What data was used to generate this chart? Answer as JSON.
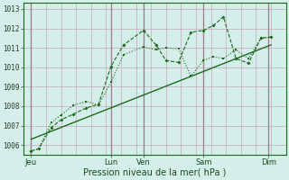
{
  "xlabel": "Pression niveau de la mer( hPa )",
  "bg_color": "#d4eeea",
  "grid_color": "#c8a8b8",
  "line_color": "#1a6b1a",
  "ylim": [
    1005.5,
    1013.3
  ],
  "xlim": [
    0,
    10.5
  ],
  "yticks": [
    1006,
    1007,
    1008,
    1009,
    1010,
    1011,
    1012,
    1013
  ],
  "xtick_labels": [
    "Jeu",
    "Lun",
    "Ven",
    "Sam",
    "Dim"
  ],
  "xtick_positions": [
    0.3,
    3.5,
    4.8,
    7.2,
    9.8
  ],
  "vline_positions": [
    0.3,
    3.5,
    4.8,
    7.2,
    9.8
  ],
  "minor_vlines": [
    0.3,
    0.9,
    1.5,
    2.1,
    2.7,
    3.3,
    3.9,
    4.5,
    5.1,
    5.7,
    6.3,
    6.9,
    7.5,
    8.1,
    8.7,
    9.3,
    9.9
  ],
  "series1_x": [
    0.3,
    0.6,
    1.1,
    1.5,
    2.0,
    2.5,
    3.0,
    3.5,
    4.0,
    4.8,
    5.3,
    5.7,
    6.2,
    6.7,
    7.2,
    7.6,
    8.0,
    8.5,
    9.0,
    9.5,
    9.9
  ],
  "series1_y": [
    1005.7,
    1005.8,
    1006.9,
    1007.3,
    1007.6,
    1007.9,
    1008.1,
    1010.05,
    1011.15,
    1011.9,
    1011.15,
    1010.35,
    1010.25,
    1011.8,
    1011.9,
    1012.15,
    1012.6,
    1010.45,
    1010.2,
    1011.5,
    1011.55
  ],
  "series2_x": [
    0.3,
    0.6,
    1.1,
    1.5,
    2.0,
    2.5,
    3.0,
    3.5,
    4.0,
    4.8,
    5.3,
    5.7,
    6.2,
    6.7,
    7.2,
    7.6,
    8.0,
    8.5,
    9.0,
    9.5,
    9.9
  ],
  "series2_y": [
    1005.7,
    1005.8,
    1007.15,
    1007.55,
    1008.05,
    1008.25,
    1008.05,
    1009.25,
    1010.65,
    1011.05,
    1010.9,
    1011.0,
    1010.95,
    1009.55,
    1010.35,
    1010.55,
    1010.45,
    1010.9,
    1010.45,
    1011.5,
    1011.55
  ],
  "trend_x": [
    0.3,
    9.9
  ],
  "trend_y": [
    1006.3,
    1011.15
  ],
  "ytick_fontsize": 5.5,
  "xtick_fontsize": 6.0,
  "xlabel_fontsize": 7.0
}
